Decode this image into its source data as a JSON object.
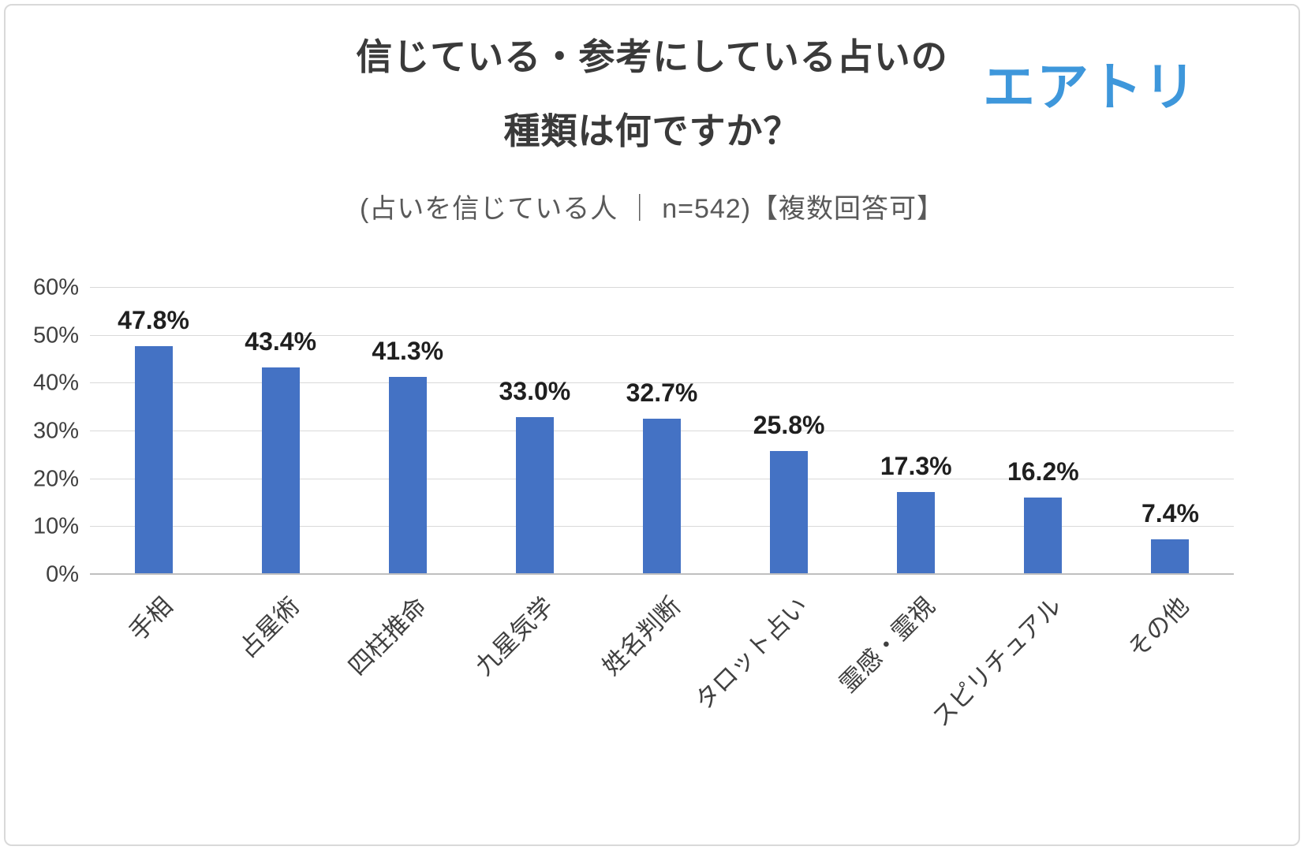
{
  "header": {
    "title_line1": "信じている・参考にしている占いの",
    "title_line2": "種類は何ですか？",
    "subtitle": "(占いを信じている人 ｜ n=542)【複数回答可】",
    "logo_text": "エアトリ"
  },
  "chart_data": {
    "type": "bar",
    "title": "信じている・参考にしている占いの種類は何ですか？",
    "subtitle": "(占いを信じている人 ｜ n=542)【複数回答可】",
    "categories": [
      "手相",
      "占星術",
      "四柱推命",
      "九星気学",
      "姓名判断",
      "タロット占い",
      "霊感・霊視",
      "スピリチュアル",
      "その他"
    ],
    "values": [
      47.8,
      43.4,
      41.3,
      33.0,
      32.7,
      25.8,
      17.3,
      16.2,
      7.4
    ],
    "value_labels": [
      "47.8%",
      "43.4%",
      "41.3%",
      "33.0%",
      "32.7%",
      "25.8%",
      "17.3%",
      "16.2%",
      "7.4%"
    ],
    "xlabel": "",
    "ylabel": "",
    "ylim": [
      0,
      60
    ],
    "ytick_step": 10,
    "ytick_labels": [
      "0%",
      "10%",
      "20%",
      "30%",
      "40%",
      "50%",
      "60%"
    ],
    "grid": true,
    "legend_position": "none",
    "bar_color": "#4472c4"
  },
  "colors": {
    "accent_blue": "#4472c4",
    "logo_blue": "#3e97db",
    "title_text": "#3a3a3a",
    "subtitle_text": "#595959",
    "axis_text": "#404040",
    "gridline": "#d9d9d9"
  }
}
